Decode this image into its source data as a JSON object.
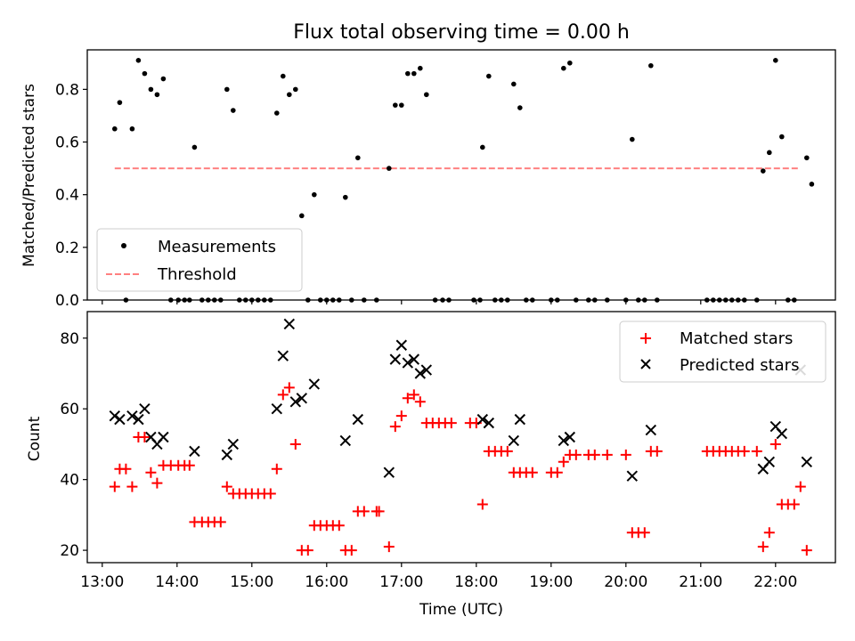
{
  "chart_data": [
    {
      "type": "scatter",
      "title": "Flux total observing time = 0.00 h",
      "xlabel": "",
      "ylabel": "Matched/Predicted stars",
      "xlim": [
        "12:48",
        "22:48"
      ],
      "ylim": [
        0,
        0.95
      ],
      "x_ticks": [
        "13:00",
        "14:00",
        "15:00",
        "16:00",
        "17:00",
        "18:00",
        "19:00",
        "20:00",
        "21:00",
        "22:00"
      ],
      "y_ticks": [
        0.0,
        0.2,
        0.4,
        0.6,
        0.8
      ],
      "y_tick_labels": [
        "0.0",
        "0.2",
        "0.4",
        "0.6",
        "0.8"
      ],
      "legend": {
        "position": "lower-left",
        "entries": [
          "Measurements",
          "Threshold"
        ]
      },
      "colors": {
        "measurements": "#000000",
        "threshold": "#ff8080"
      },
      "threshold": {
        "value": 0.5,
        "x_start": "13:10",
        "x_end": "22:18"
      },
      "series": [
        {
          "name": "Measurements",
          "points": [
            [
              "13:10",
              0.65
            ],
            [
              "13:14",
              0.75
            ],
            [
              "13:19",
              0.0
            ],
            [
              "13:24",
              0.65
            ],
            [
              "13:29",
              0.91
            ],
            [
              "13:34",
              0.86
            ],
            [
              "13:39",
              0.8
            ],
            [
              "13:44",
              0.78
            ],
            [
              "13:49",
              0.84
            ],
            [
              "13:55",
              0.0
            ],
            [
              "14:01",
              0.0
            ],
            [
              "14:06",
              0.0
            ],
            [
              "14:10",
              0.0
            ],
            [
              "14:14",
              0.58
            ],
            [
              "14:20",
              0.0
            ],
            [
              "14:25",
              0.0
            ],
            [
              "14:30",
              0.0
            ],
            [
              "14:35",
              0.0
            ],
            [
              "14:40",
              0.8
            ],
            [
              "14:45",
              0.72
            ],
            [
              "14:50",
              0.0
            ],
            [
              "14:55",
              0.0
            ],
            [
              "15:00",
              0.0
            ],
            [
              "15:05",
              0.0
            ],
            [
              "15:10",
              0.0
            ],
            [
              "15:15",
              0.0
            ],
            [
              "15:20",
              0.71
            ],
            [
              "15:25",
              0.85
            ],
            [
              "15:30",
              0.78
            ],
            [
              "15:35",
              0.8
            ],
            [
              "15:40",
              0.32
            ],
            [
              "15:45",
              0.0
            ],
            [
              "15:50",
              0.4
            ],
            [
              "15:55",
              0.0
            ],
            [
              "16:00",
              0.0
            ],
            [
              "16:05",
              0.0
            ],
            [
              "16:10",
              0.0
            ],
            [
              "16:15",
              0.39
            ],
            [
              "16:20",
              0.0
            ],
            [
              "16:25",
              0.54
            ],
            [
              "16:30",
              0.0
            ],
            [
              "16:40",
              0.0
            ],
            [
              "16:50",
              0.5
            ],
            [
              "16:55",
              0.74
            ],
            [
              "17:00",
              0.74
            ],
            [
              "17:05",
              0.86
            ],
            [
              "17:10",
              0.86
            ],
            [
              "17:15",
              0.88
            ],
            [
              "17:20",
              0.78
            ],
            [
              "17:27",
              0.0
            ],
            [
              "17:33",
              0.0
            ],
            [
              "17:38",
              0.0
            ],
            [
              "17:58",
              0.0
            ],
            [
              "18:03",
              0.0
            ],
            [
              "18:05",
              0.58
            ],
            [
              "18:10",
              0.85
            ],
            [
              "18:15",
              0.0
            ],
            [
              "18:20",
              0.0
            ],
            [
              "18:25",
              0.0
            ],
            [
              "18:30",
              0.82
            ],
            [
              "18:35",
              0.73
            ],
            [
              "18:40",
              0.0
            ],
            [
              "18:45",
              0.0
            ],
            [
              "19:00",
              0.0
            ],
            [
              "19:05",
              0.0
            ],
            [
              "19:10",
              0.88
            ],
            [
              "19:15",
              0.9
            ],
            [
              "19:20",
              0.0
            ],
            [
              "19:30",
              0.0
            ],
            [
              "19:35",
              0.0
            ],
            [
              "19:45",
              0.0
            ],
            [
              "20:00",
              0.0
            ],
            [
              "20:05",
              0.61
            ],
            [
              "20:10",
              0.0
            ],
            [
              "20:15",
              0.0
            ],
            [
              "20:20",
              0.89
            ],
            [
              "20:25",
              0.0
            ],
            [
              "21:05",
              0.0
            ],
            [
              "21:10",
              0.0
            ],
            [
              "21:15",
              0.0
            ],
            [
              "21:20",
              0.0
            ],
            [
              "21:25",
              0.0
            ],
            [
              "21:30",
              0.0
            ],
            [
              "21:35",
              0.0
            ],
            [
              "21:45",
              0.0
            ],
            [
              "21:50",
              0.49
            ],
            [
              "21:55",
              0.56
            ],
            [
              "22:00",
              0.91
            ],
            [
              "22:05",
              0.62
            ],
            [
              "22:10",
              0.0
            ],
            [
              "22:15",
              0.0
            ],
            [
              "22:25",
              0.54
            ],
            [
              "22:29",
              0.44
            ]
          ]
        }
      ]
    },
    {
      "type": "scatter",
      "title": "",
      "xlabel": "Time (UTC)",
      "ylabel": "Count",
      "xlim": [
        "12:48",
        "22:48"
      ],
      "ylim": [
        16.5,
        87.5
      ],
      "x_ticks": [
        "13:00",
        "14:00",
        "15:00",
        "16:00",
        "17:00",
        "18:00",
        "19:00",
        "20:00",
        "21:00",
        "22:00"
      ],
      "x_tick_labels": [
        "13:00",
        "14:00",
        "15:00",
        "16:00",
        "17:00",
        "18:00",
        "19:00",
        "20:00",
        "21:00",
        "22:00"
      ],
      "y_ticks": [
        20,
        40,
        60,
        80
      ],
      "y_tick_labels": [
        "20",
        "40",
        "60",
        "80"
      ],
      "legend": {
        "position": "upper-right",
        "entries": [
          "Matched stars",
          "Predicted stars"
        ]
      },
      "colors": {
        "matched": "#ff0000",
        "predicted": "#000000"
      },
      "series": [
        {
          "name": "Matched stars",
          "marker": "plus",
          "points": [
            [
              "13:10",
              38
            ],
            [
              "13:14",
              43
            ],
            [
              "13:19",
              43
            ],
            [
              "13:24",
              38
            ],
            [
              "13:29",
              52
            ],
            [
              "13:34",
              52
            ],
            [
              "13:39",
              42
            ],
            [
              "13:44",
              39
            ],
            [
              "13:49",
              44
            ],
            [
              "13:55",
              44
            ],
            [
              "14:01",
              44
            ],
            [
              "14:06",
              44
            ],
            [
              "14:10",
              44
            ],
            [
              "14:14",
              28
            ],
            [
              "14:20",
              28
            ],
            [
              "14:25",
              28
            ],
            [
              "14:30",
              28
            ],
            [
              "14:35",
              28
            ],
            [
              "14:40",
              38
            ],
            [
              "14:45",
              36
            ],
            [
              "14:50",
              36
            ],
            [
              "14:55",
              36
            ],
            [
              "15:00",
              36
            ],
            [
              "15:05",
              36
            ],
            [
              "15:10",
              36
            ],
            [
              "15:15",
              36
            ],
            [
              "15:20",
              43
            ],
            [
              "15:25",
              64
            ],
            [
              "15:30",
              66
            ],
            [
              "15:35",
              50
            ],
            [
              "15:40",
              20
            ],
            [
              "15:45",
              20
            ],
            [
              "15:50",
              27
            ],
            [
              "15:55",
              27
            ],
            [
              "16:00",
              27
            ],
            [
              "16:05",
              27
            ],
            [
              "16:10",
              27
            ],
            [
              "16:15",
              20
            ],
            [
              "16:20",
              20
            ],
            [
              "16:25",
              31
            ],
            [
              "16:30",
              31
            ],
            [
              "16:40",
              31
            ],
            [
              "16:42",
              31
            ],
            [
              "16:50",
              21
            ],
            [
              "16:55",
              55
            ],
            [
              "17:00",
              58
            ],
            [
              "17:05",
              63
            ],
            [
              "17:10",
              64
            ],
            [
              "17:15",
              62
            ],
            [
              "17:20",
              56
            ],
            [
              "17:25",
              56
            ],
            [
              "17:30",
              56
            ],
            [
              "17:35",
              56
            ],
            [
              "17:40",
              56
            ],
            [
              "17:55",
              56
            ],
            [
              "18:00",
              56
            ],
            [
              "18:05",
              33
            ],
            [
              "18:10",
              48
            ],
            [
              "18:15",
              48
            ],
            [
              "18:20",
              48
            ],
            [
              "18:25",
              48
            ],
            [
              "18:30",
              42
            ],
            [
              "18:35",
              42
            ],
            [
              "18:40",
              42
            ],
            [
              "18:45",
              42
            ],
            [
              "19:00",
              42
            ],
            [
              "19:05",
              42
            ],
            [
              "19:10",
              45
            ],
            [
              "19:15",
              47
            ],
            [
              "19:20",
              47
            ],
            [
              "19:30",
              47
            ],
            [
              "19:35",
              47
            ],
            [
              "19:45",
              47
            ],
            [
              "20:00",
              47
            ],
            [
              "20:05",
              25
            ],
            [
              "20:10",
              25
            ],
            [
              "20:15",
              25
            ],
            [
              "20:20",
              48
            ],
            [
              "20:25",
              48
            ],
            [
              "21:05",
              48
            ],
            [
              "21:10",
              48
            ],
            [
              "21:15",
              48
            ],
            [
              "21:20",
              48
            ],
            [
              "21:25",
              48
            ],
            [
              "21:30",
              48
            ],
            [
              "21:35",
              48
            ],
            [
              "21:45",
              48
            ],
            [
              "21:50",
              21
            ],
            [
              "21:55",
              25
            ],
            [
              "22:00",
              50
            ],
            [
              "22:05",
              33
            ],
            [
              "22:10",
              33
            ],
            [
              "22:15",
              33
            ],
            [
              "22:20",
              38
            ],
            [
              "22:25",
              20
            ]
          ]
        },
        {
          "name": "Predicted stars",
          "marker": "x",
          "points": [
            [
              "13:10",
              58
            ],
            [
              "13:14",
              57
            ],
            [
              "13:24",
              58
            ],
            [
              "13:29",
              57
            ],
            [
              "13:34",
              60
            ],
            [
              "13:39",
              52
            ],
            [
              "13:44",
              50
            ],
            [
              "13:49",
              52
            ],
            [
              "14:14",
              48
            ],
            [
              "14:40",
              47
            ],
            [
              "14:45",
              50
            ],
            [
              "15:20",
              60
            ],
            [
              "15:25",
              75
            ],
            [
              "15:30",
              84
            ],
            [
              "15:35",
              62
            ],
            [
              "15:40",
              63
            ],
            [
              "15:50",
              67
            ],
            [
              "16:15",
              51
            ],
            [
              "16:25",
              57
            ],
            [
              "16:50",
              42
            ],
            [
              "16:55",
              74
            ],
            [
              "17:00",
              78
            ],
            [
              "17:05",
              73
            ],
            [
              "17:10",
              74
            ],
            [
              "17:15",
              70
            ],
            [
              "17:20",
              71
            ],
            [
              "18:05",
              57
            ],
            [
              "18:10",
              56
            ],
            [
              "18:30",
              51
            ],
            [
              "18:35",
              57
            ],
            [
              "19:10",
              51
            ],
            [
              "19:15",
              52
            ],
            [
              "20:05",
              41
            ],
            [
              "20:20",
              54
            ],
            [
              "21:50",
              43
            ],
            [
              "21:55",
              45
            ],
            [
              "22:00",
              55
            ],
            [
              "22:05",
              53
            ],
            [
              "22:20",
              71
            ],
            [
              "22:25",
              45
            ]
          ]
        }
      ]
    }
  ]
}
